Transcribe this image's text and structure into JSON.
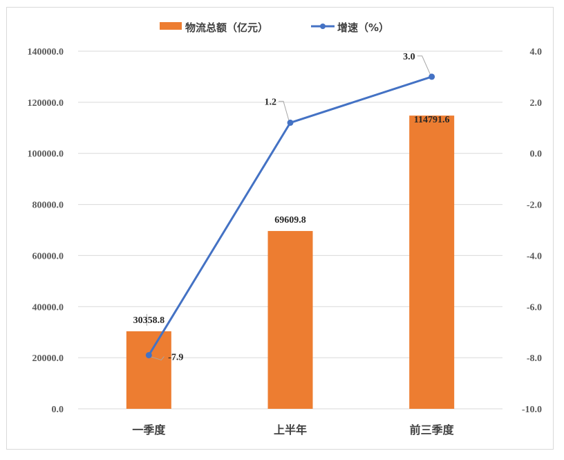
{
  "chart_data": {
    "type": "bar",
    "categories": [
      "一季度",
      "上半年",
      "前三季度"
    ],
    "series": [
      {
        "name": "物流总额（亿元）",
        "type": "bar",
        "axis": "left",
        "values": [
          30358.8,
          69609.8,
          114791.6
        ],
        "labels": [
          "30358.8",
          "69609.8",
          "114791.6"
        ],
        "color": "#ed7d31"
      },
      {
        "name": "增速（%）",
        "type": "line",
        "axis": "right",
        "values": [
          -7.9,
          1.2,
          3.0
        ],
        "labels": [
          "-7.9",
          "1.2",
          "3.0"
        ],
        "color": "#4472c4"
      }
    ],
    "y_left": {
      "ylim": [
        0,
        140000
      ],
      "ticks": [
        "0.0",
        "20000.0",
        "40000.0",
        "60000.0",
        "80000.0",
        "100000.0",
        "120000.0",
        "140000.0"
      ]
    },
    "y_right": {
      "ylim": [
        -10,
        4
      ],
      "ticks": [
        "-10.0",
        "-8.0",
        "-6.0",
        "-4.0",
        "-2.0",
        "0.0",
        "2.0",
        "4.0"
      ]
    },
    "grid": true,
    "legend": "top-center"
  }
}
